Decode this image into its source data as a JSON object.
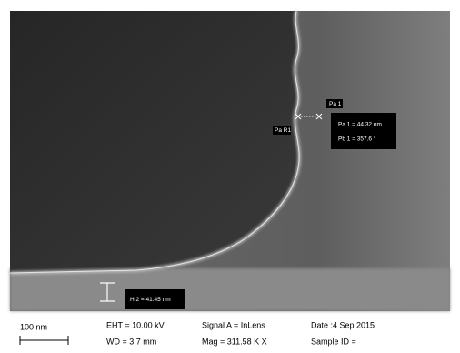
{
  "image": {
    "annotations": {
      "pa_label": "Pa 1",
      "par_label": "Pa R1",
      "measure": [
        "Pa 1 = 44.32 nm",
        "Pb 1 = 357.6 °"
      ],
      "height": "H 2 = 41.45 nm"
    }
  },
  "info_bar": {
    "scale": "100 nm",
    "eht": "EHT = 10.00 kV",
    "wd": "WD =  3.7 mm",
    "signal": "Signal A = InLens",
    "mag": "Mag = 311.58 K X",
    "date": "Date :4 Sep 2015",
    "sample": "Sample ID ="
  }
}
